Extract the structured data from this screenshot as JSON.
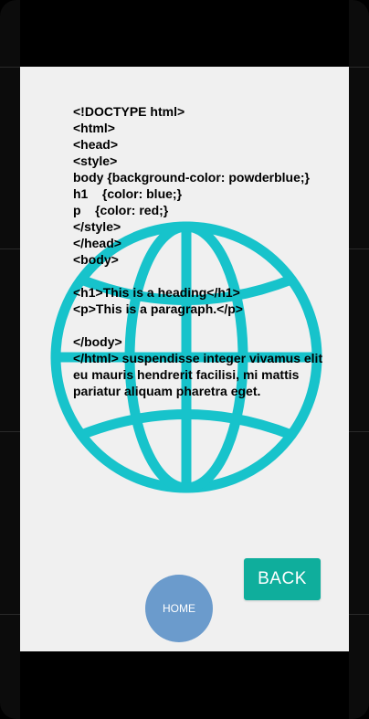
{
  "code_text": "<!DOCTYPE html>\n<html>\n<head>\n<style>\nbody {background-color: powderblue;}\nh1    {color: blue;}\np    {color: red;}\n</style>\n</head>\n<body>\n\n<h1>This is a heading</h1>\n<p>This is a paragraph.</p>\n\n</body>\n</html> suspendisse integer vivamus elit eu mauris hendrerit facilisi, mi mattis pariatur aliquam pharetra eget.",
  "back_button": {
    "label": "BACK"
  },
  "home_button": {
    "label": "HOME"
  },
  "colors": {
    "globe": "#17c3cb",
    "back_button": "#0fae9c",
    "home_button": "#6b9bcc",
    "screen_background": "#f0f0f0"
  },
  "icons": {
    "background_graphic": "globe-icon"
  }
}
